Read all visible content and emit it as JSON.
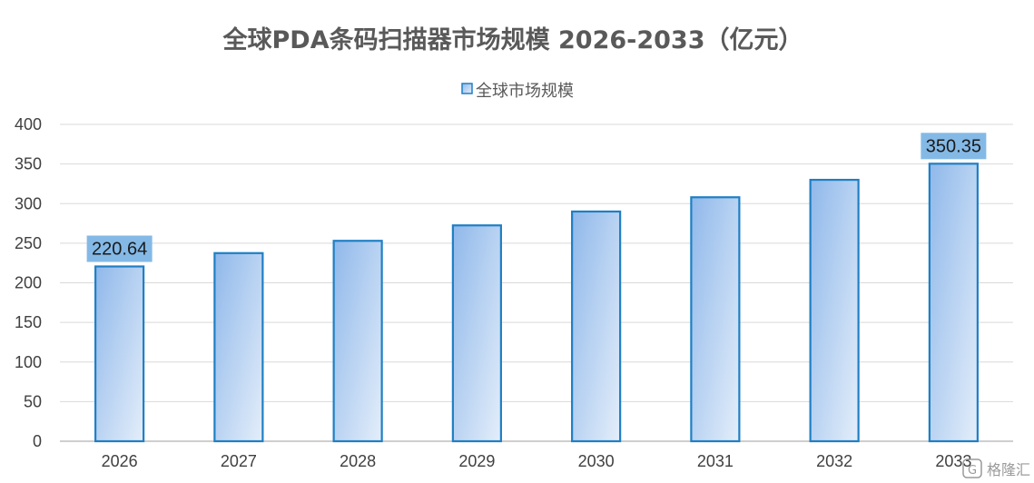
{
  "chart_data": {
    "type": "bar",
    "title": "全球PDA条码扫描器市场规模 2026-2033（亿元）",
    "categories": [
      "2026",
      "2027",
      "2028",
      "2029",
      "2030",
      "2031",
      "2032",
      "2033"
    ],
    "series": [
      {
        "name": "全球市场规模",
        "values": [
          220.64,
          237.5,
          253.0,
          272.5,
          290.0,
          308.0,
          330.0,
          350.35
        ]
      }
    ],
    "data_labels": [
      {
        "category": "2026",
        "text": "220.64"
      },
      {
        "category": "2033",
        "text": "350.35"
      }
    ],
    "y_ticks": [
      "0",
      "50",
      "100",
      "150",
      "200",
      "250",
      "300",
      "350",
      "400"
    ],
    "ylim": [
      0,
      400
    ],
    "grid": true,
    "legend_position": "top-center",
    "colors": {
      "bar_fill_start": "#8fb8ea",
      "bar_fill_end": "#e4eefa",
      "bar_stroke": "#1f7fc4",
      "label_box": "#84b9e6",
      "grid": "#d9d9d9",
      "axis": "#bfbfbf"
    }
  },
  "watermark": {
    "text": "格隆汇",
    "logo_text": "G"
  }
}
